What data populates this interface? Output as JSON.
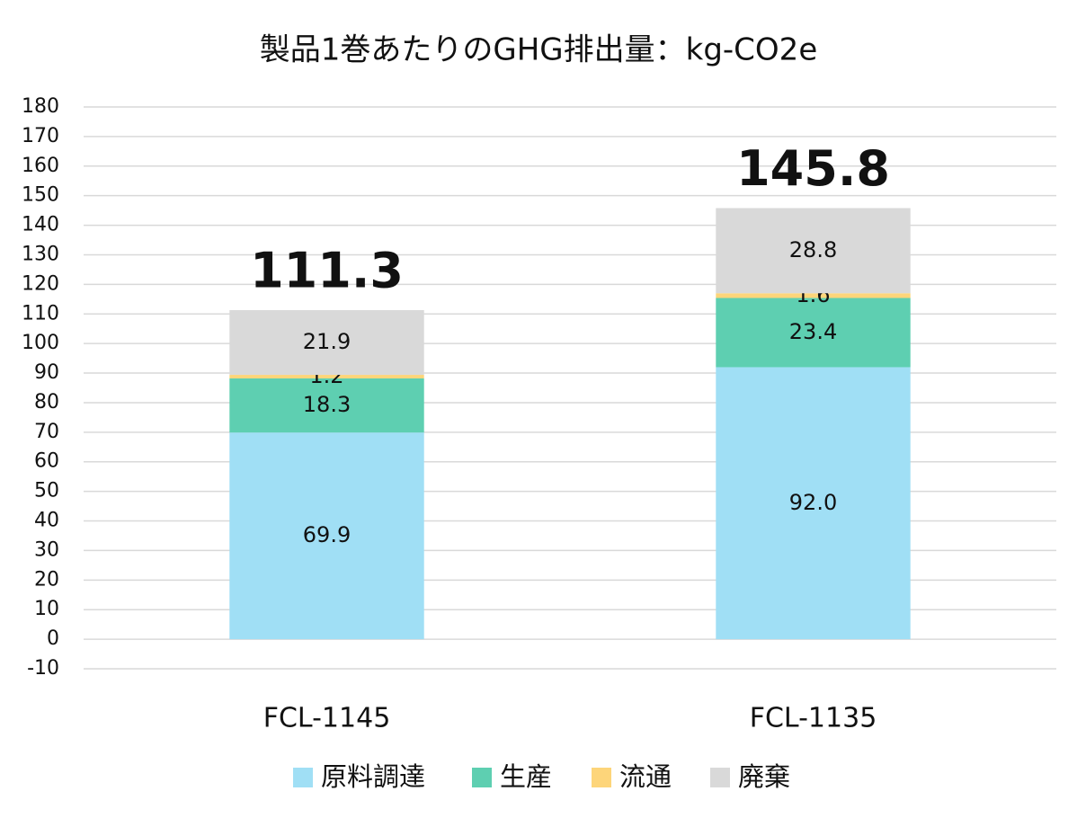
{
  "chart_data": {
    "type": "stacked_bar",
    "title": "製品1巻あたりのGHG排出量：kg-CO2e",
    "categories": [
      "FCL-1145",
      "FCL-1135"
    ],
    "series": [
      {
        "name": "原料調達",
        "color": "#a0dff5",
        "values": [
          69.9,
          92.0
        ],
        "value_labels": [
          "69.9",
          "92.0"
        ]
      },
      {
        "name": "生産",
        "color": "#5ecfb1",
        "values": [
          18.3,
          23.4
        ]
      },
      {
        "name": "流通",
        "color": "#fdd57a",
        "values": [
          1.2,
          1.6
        ]
      },
      {
        "name": "廃棄",
        "color": "#d9d9d9",
        "values": [
          21.9,
          28.8
        ]
      }
    ],
    "totals": [
      111.3,
      145.8
    ],
    "ylim": [
      -10,
      180
    ],
    "yticks": [
      -10,
      0,
      10,
      20,
      30,
      40,
      50,
      60,
      70,
      80,
      90,
      100,
      110,
      120,
      130,
      140,
      150,
      160,
      170,
      180
    ],
    "grid": true,
    "legend": "bottom"
  }
}
